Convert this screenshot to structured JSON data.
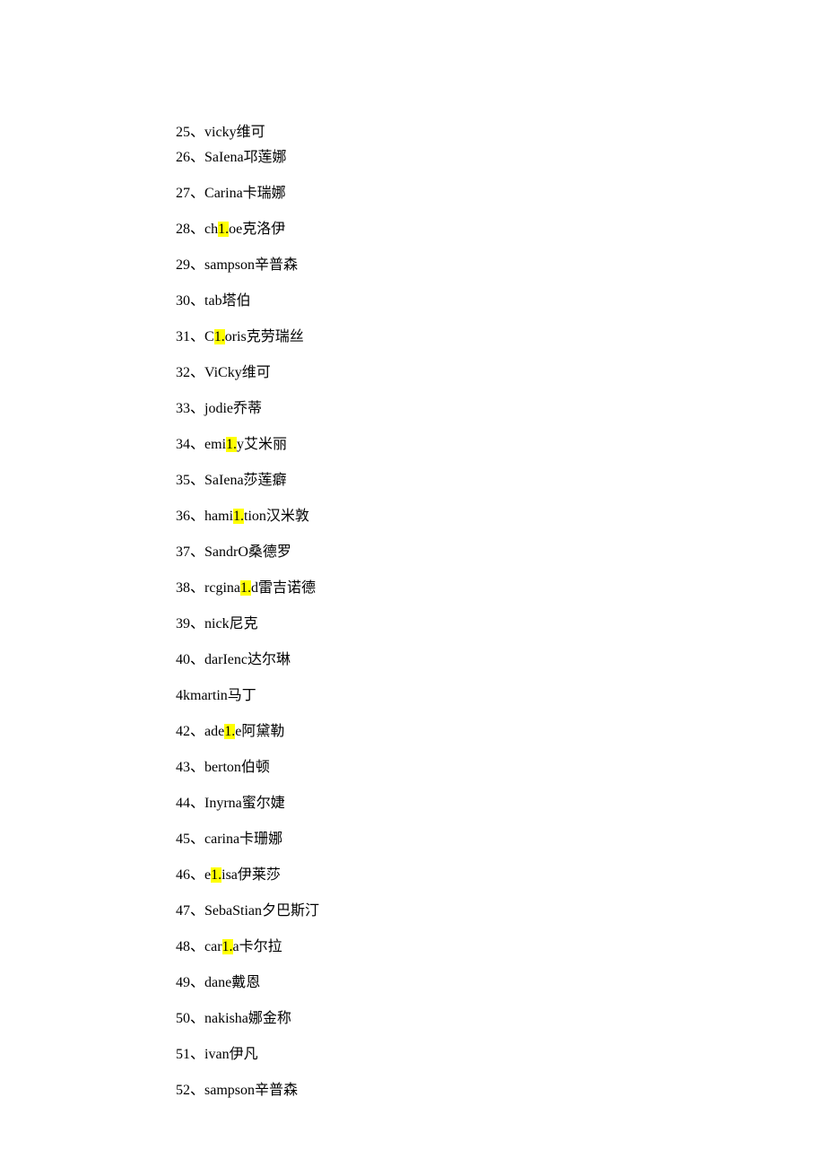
{
  "text_color": "#000000",
  "background_color": "#ffffff",
  "highlight_color": "#ffff00",
  "font_family": "Times New Roman / SimSun",
  "font_size_pt": 12,
  "separator": "、",
  "items": [
    {
      "num": "25",
      "pre": "vicky维可",
      "hl": "",
      "post": ""
    },
    {
      "num": "26",
      "pre": "SaIena邛莲娜",
      "hl": "",
      "post": ""
    },
    {
      "num": "27",
      "pre": "Carina卡瑞娜",
      "hl": "",
      "post": ""
    },
    {
      "num": "28",
      "pre": "ch",
      "hl": "1.",
      "post": "oe克洛伊"
    },
    {
      "num": "29",
      "pre": "sampson辛普森",
      "hl": "",
      "post": ""
    },
    {
      "num": "30",
      "pre": "tab塔伯",
      "hl": "",
      "post": ""
    },
    {
      "num": "31",
      "pre": "C",
      "hl": "1.",
      "post": "oris克劳瑞丝"
    },
    {
      "num": "32",
      "pre": "ViCky维可",
      "hl": "",
      "post": ""
    },
    {
      "num": "33",
      "pre": "jodie乔蒂",
      "hl": "",
      "post": ""
    },
    {
      "num": "34",
      "pre": "emi",
      "hl": "1.",
      "post": "y艾米丽"
    },
    {
      "num": "35",
      "pre": "SaIena莎莲癖",
      "hl": "",
      "post": ""
    },
    {
      "num": "36",
      "pre": "hami",
      "hl": "1.",
      "post": "tion汉米敦"
    },
    {
      "num": "37",
      "pre": "SandrO桑德罗",
      "hl": "",
      "post": ""
    },
    {
      "num": "38",
      "pre": "rcgina",
      "hl": "1.",
      "post": "d雷吉诺德"
    },
    {
      "num": "39",
      "pre": "nick尼克",
      "hl": "",
      "post": ""
    },
    {
      "num": "40",
      "pre": "darIenc达尔琳",
      "hl": "",
      "post": ""
    },
    {
      "num": "",
      "pre": "4kmartin马丁",
      "hl": "",
      "post": ""
    },
    {
      "num": "42",
      "pre": "ade",
      "hl": "1.",
      "post": "e阿黛勒"
    },
    {
      "num": "43",
      "pre": "berton伯顿",
      "hl": "",
      "post": ""
    },
    {
      "num": "44",
      "pre": "Inyrna蜜尔婕",
      "hl": "",
      "post": ""
    },
    {
      "num": "45",
      "pre": "carina卡珊娜",
      "hl": "",
      "post": ""
    },
    {
      "num": "46",
      "pre": "e",
      "hl": "1.",
      "post": "isa伊莱莎"
    },
    {
      "num": "47",
      "pre": "SebaStian夕巴斯汀",
      "hl": "",
      "post": ""
    },
    {
      "num": "48",
      "pre": "car",
      "hl": "1.",
      "post": "a卡尔拉"
    },
    {
      "num": "49",
      "pre": "dane戴恩",
      "hl": "",
      "post": ""
    },
    {
      "num": "50",
      "pre": "nakisha娜金称",
      "hl": "",
      "post": ""
    },
    {
      "num": "51",
      "pre": "ivan伊凡",
      "hl": "",
      "post": ""
    },
    {
      "num": "52",
      "pre": "sampson辛普森",
      "hl": "",
      "post": ""
    }
  ]
}
